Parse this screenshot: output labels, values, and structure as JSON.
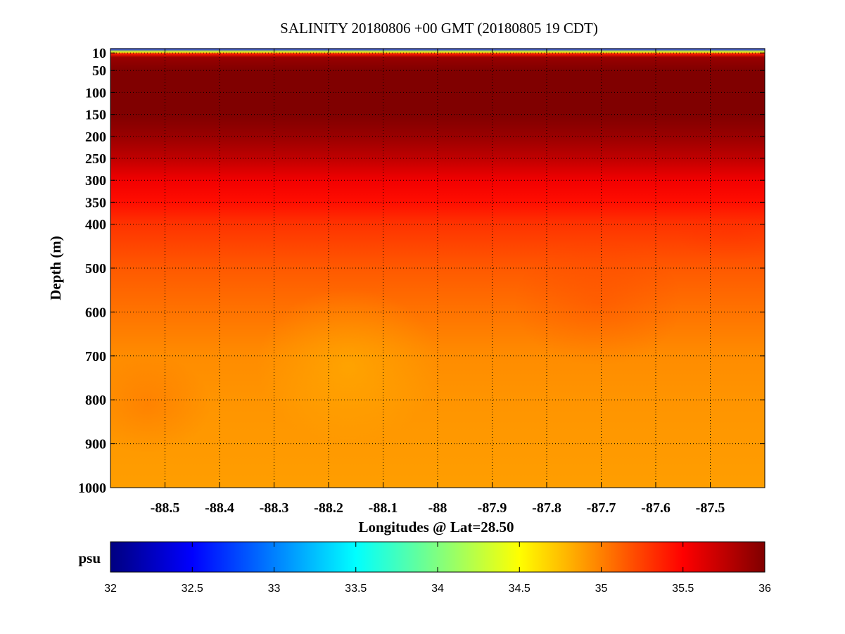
{
  "chart_data": {
    "type": "heatmap",
    "title": "SALINITY 20180806 +00 GMT (20180805 19 CDT)",
    "xlabel": "Longitudes @ Lat=28.50",
    "ylabel": "Depth (m)",
    "x_ticks": [
      -88.5,
      -88.4,
      -88.3,
      -88.2,
      -88.1,
      -88,
      -87.9,
      -87.8,
      -87.7,
      -87.6,
      -87.5
    ],
    "x_tick_labels": [
      "-88.5",
      "-88.4",
      "-88.3",
      "-88.2",
      "-88.1",
      "-88",
      "-87.9",
      "-87.8",
      "-87.7",
      "-87.6",
      "-87.5"
    ],
    "xlim": [
      -88.6,
      -87.4
    ],
    "y_ticks": [
      10,
      50,
      100,
      150,
      200,
      250,
      300,
      350,
      400,
      500,
      600,
      700,
      800,
      900,
      1000
    ],
    "y_tick_labels": [
      "10",
      "50",
      "100",
      "150",
      "200",
      "250",
      "300",
      "350",
      "400",
      "500",
      "600",
      "700",
      "800",
      "900",
      "1000"
    ],
    "ylim": [
      0,
      1000
    ],
    "y_axis_inverted": true,
    "grid": true,
    "colormap": "jet",
    "colorbar": {
      "label": "psu",
      "range": [
        32,
        36
      ],
      "ticks": [
        32,
        32.5,
        33,
        33.5,
        34,
        34.5,
        35,
        35.5,
        36
      ],
      "tick_labels": [
        "32",
        "32.5",
        "33",
        "33.5",
        "34",
        "34.5",
        "35",
        "35.5",
        "36"
      ],
      "placement": "bottom"
    },
    "depth_profile": {
      "depths": [
        0,
        8,
        12,
        20,
        50,
        100,
        150,
        200,
        250,
        300,
        350,
        400,
        500,
        600,
        700,
        800,
        900,
        1000
      ],
      "salinity": [
        32.6,
        34.4,
        35.4,
        35.9,
        36.0,
        36.0,
        36.0,
        35.9,
        35.75,
        35.55,
        35.45,
        35.3,
        35.15,
        35.05,
        34.95,
        34.92,
        34.9,
        34.88
      ]
    }
  }
}
